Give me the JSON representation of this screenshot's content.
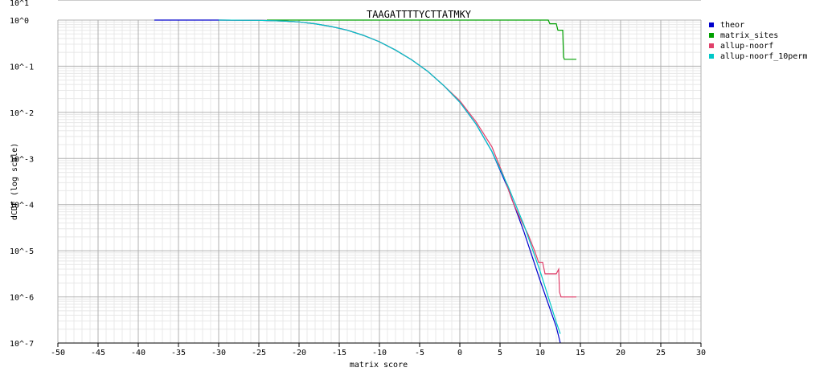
{
  "chart_data": {
    "type": "line",
    "title": "TAAGATTTTYCTTATMKY",
    "xlabel": "matrix score",
    "ylabel": "dCDF (log scale)",
    "xlim": [
      -50,
      30
    ],
    "ylim_log10": [
      -7,
      0
    ],
    "y_scale": "log",
    "grid": true,
    "x_ticks": [
      -50,
      -45,
      -40,
      -35,
      -30,
      -25,
      -20,
      -15,
      -10,
      -5,
      0,
      5,
      10,
      15,
      20,
      25,
      30
    ],
    "y_ticks": [
      "10^0",
      "10^-1",
      "10^-2",
      "10^-3",
      "10^-4",
      "10^-5",
      "10^-6",
      "10^-7"
    ],
    "y_ticks_partial": [
      "10^1"
    ],
    "legend_position": "right",
    "series": [
      {
        "name": "theor",
        "color": "#0000cc",
        "points": [
          [
            -38,
            0
          ],
          [
            -30,
            0
          ],
          [
            -25,
            -0.005
          ],
          [
            -22,
            -0.02
          ],
          [
            -20,
            -0.04
          ],
          [
            -18,
            -0.08
          ],
          [
            -16,
            -0.14
          ],
          [
            -14,
            -0.22
          ],
          [
            -12,
            -0.33
          ],
          [
            -10,
            -0.47
          ],
          [
            -8,
            -0.65
          ],
          [
            -6,
            -0.86
          ],
          [
            -4,
            -1.11
          ],
          [
            -2,
            -1.42
          ],
          [
            0,
            -1.78
          ],
          [
            2,
            -2.25
          ],
          [
            4,
            -2.85
          ],
          [
            6,
            -3.65
          ],
          [
            8,
            -4.6
          ],
          [
            10,
            -5.65
          ],
          [
            12,
            -6.65
          ],
          [
            12.5,
            -7
          ]
        ]
      },
      {
        "name": "matrix_sites",
        "color": "#00a000",
        "points": [
          [
            -24,
            0
          ],
          [
            11,
            0
          ],
          [
            11.2,
            -0.08
          ],
          [
            12,
            -0.08
          ],
          [
            12.2,
            -0.22
          ],
          [
            12.8,
            -0.22
          ],
          [
            12.9,
            -0.8
          ],
          [
            13,
            -0.85
          ],
          [
            14.5,
            -0.85
          ]
        ]
      },
      {
        "name": "allup-noorf",
        "color": "#e0406a",
        "points": [
          [
            -30,
            0
          ],
          [
            -25,
            -0.005
          ],
          [
            -22,
            -0.02
          ],
          [
            -20,
            -0.04
          ],
          [
            -18,
            -0.08
          ],
          [
            -16,
            -0.14
          ],
          [
            -14,
            -0.22
          ],
          [
            -12,
            -0.33
          ],
          [
            -10,
            -0.47
          ],
          [
            -8,
            -0.65
          ],
          [
            -6,
            -0.86
          ],
          [
            -4,
            -1.11
          ],
          [
            -2,
            -1.42
          ],
          [
            0,
            -1.75
          ],
          [
            2,
            -2.2
          ],
          [
            4,
            -2.75
          ],
          [
            5.5,
            -3.4
          ],
          [
            6.5,
            -3.9
          ],
          [
            7.5,
            -4.3
          ],
          [
            8.5,
            -4.65
          ],
          [
            9.3,
            -5.0
          ],
          [
            9.8,
            -5.25
          ],
          [
            10.3,
            -5.25
          ],
          [
            10.6,
            -5.5
          ],
          [
            11.2,
            -5.5
          ],
          [
            11.5,
            -5.5
          ],
          [
            12,
            -5.5
          ],
          [
            12.3,
            -5.4
          ],
          [
            12.4,
            -5.9
          ],
          [
            12.6,
            -6.0
          ],
          [
            14.5,
            -6.0
          ]
        ]
      },
      {
        "name": "allup-noorf_10perm",
        "color": "#00c8c8",
        "points": [
          [
            -30,
            0
          ],
          [
            -25,
            -0.005
          ],
          [
            -22,
            -0.02
          ],
          [
            -20,
            -0.04
          ],
          [
            -18,
            -0.08
          ],
          [
            -16,
            -0.14
          ],
          [
            -14,
            -0.22
          ],
          [
            -12,
            -0.33
          ],
          [
            -10,
            -0.47
          ],
          [
            -8,
            -0.65
          ],
          [
            -6,
            -0.86
          ],
          [
            -4,
            -1.11
          ],
          [
            -2,
            -1.42
          ],
          [
            0,
            -1.78
          ],
          [
            2,
            -2.25
          ],
          [
            4,
            -2.85
          ],
          [
            6,
            -3.6
          ],
          [
            8,
            -4.45
          ],
          [
            10,
            -5.45
          ],
          [
            11,
            -6.0
          ],
          [
            12,
            -6.55
          ],
          [
            12.5,
            -6.8
          ]
        ]
      }
    ]
  }
}
